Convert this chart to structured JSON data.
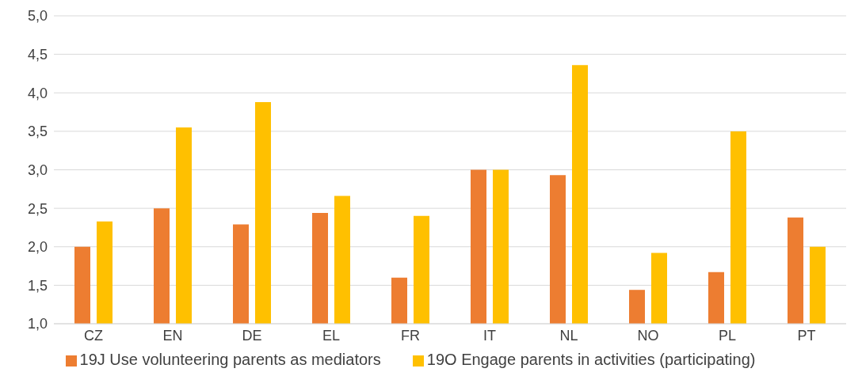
{
  "chart_data": {
    "type": "bar",
    "categories": [
      "CZ",
      "EN",
      "DE",
      "EL",
      "FR",
      "IT",
      "NL",
      "NO",
      "PL",
      "PT"
    ],
    "series": [
      {
        "name": "19J Use volunteering parents as mediators",
        "color": "#ed7d31",
        "values": [
          2.0,
          2.5,
          2.29,
          2.44,
          1.6,
          3.0,
          2.93,
          1.44,
          1.67,
          2.38
        ]
      },
      {
        "name": "19O Engage parents in activities (participating)",
        "color": "#ffc000",
        "values": [
          2.33,
          3.55,
          3.88,
          2.66,
          2.4,
          3.0,
          4.36,
          1.92,
          3.5,
          2.0
        ]
      }
    ],
    "ylim": [
      1,
      5
    ],
    "yticks": [
      {
        "value": 1,
        "label": "1,0"
      },
      {
        "value": 1.5,
        "label": "1,5"
      },
      {
        "value": 2,
        "label": "2,0"
      },
      {
        "value": 2.5,
        "label": "2,5"
      },
      {
        "value": 3,
        "label": "3,0"
      },
      {
        "value": 3.5,
        "label": "3,5"
      },
      {
        "value": 4,
        "label": "4,0"
      },
      {
        "value": 4.5,
        "label": "4,5"
      },
      {
        "value": 5,
        "label": "5,0"
      }
    ],
    "grid": "y",
    "legend": "bottom"
  }
}
